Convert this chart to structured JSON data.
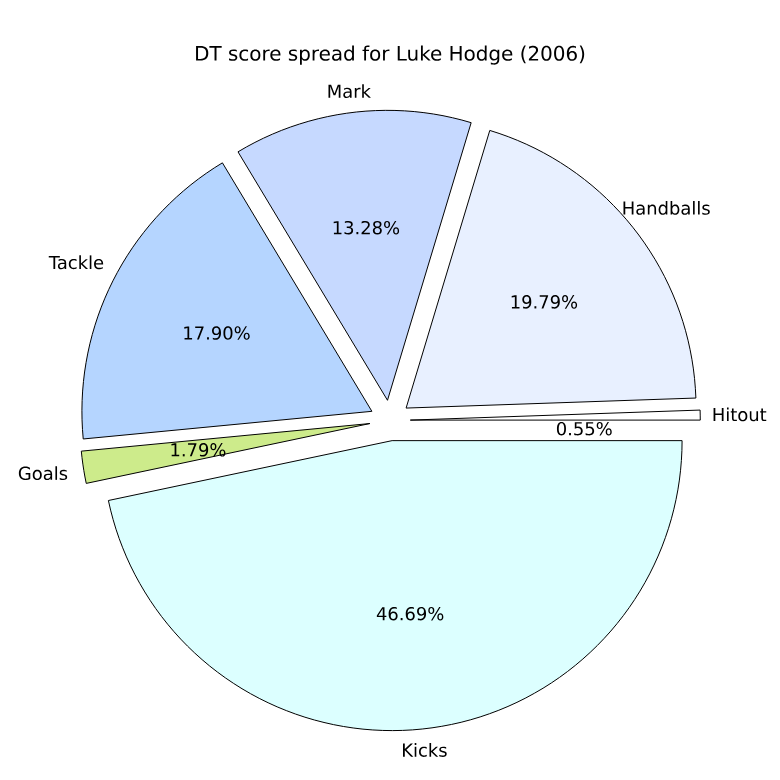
{
  "chart_data": {
    "type": "pie",
    "title": "DT score spread for Luke Hodge (2006)",
    "categories": [
      "Hitout",
      "Handballs",
      "Mark",
      "Tackle",
      "Goals",
      "Kicks"
    ],
    "values": [
      0.55,
      19.79,
      13.28,
      17.9,
      1.79,
      46.69
    ],
    "value_labels": [
      "0.55%",
      "19.79%",
      "13.28%",
      "17.90%",
      "1.79%",
      "46.69%"
    ],
    "colors": [
      "#ffffff",
      "#e8f0ff",
      "#c6d9ff",
      "#b5d5ff",
      "#cdeb8b",
      "#dcffff"
    ]
  }
}
